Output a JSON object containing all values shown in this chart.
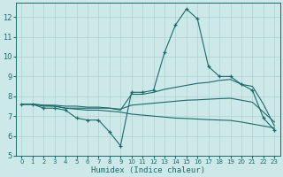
{
  "xlabel": "Humidex (Indice chaleur)",
  "xlim": [
    -0.5,
    23.5
  ],
  "ylim": [
    5,
    12.7
  ],
  "yticks": [
    5,
    6,
    7,
    8,
    9,
    10,
    11,
    12
  ],
  "xticks": [
    0,
    1,
    2,
    3,
    4,
    5,
    6,
    7,
    8,
    9,
    10,
    11,
    12,
    13,
    14,
    15,
    16,
    17,
    18,
    19,
    20,
    21,
    22,
    23
  ],
  "bg_color": "#cde8e8",
  "grid_color": "#b0d0d0",
  "line_color": "#1a6b6b",
  "lines": [
    {
      "x": [
        0,
        1,
        2,
        3,
        4,
        5,
        6,
        7,
        8,
        9,
        10,
        11,
        12,
        13,
        14,
        15,
        16,
        17,
        18,
        19,
        20,
        21,
        22,
        23
      ],
      "y": [
        7.6,
        7.6,
        7.4,
        7.4,
        7.3,
        6.9,
        6.8,
        6.8,
        6.2,
        5.5,
        8.2,
        8.2,
        8.3,
        10.2,
        11.6,
        12.4,
        11.9,
        9.5,
        9.0,
        9.0,
        8.6,
        8.3,
        6.9,
        6.3
      ],
      "marker": "+"
    },
    {
      "x": [
        0,
        1,
        2,
        3,
        4,
        5,
        6,
        7,
        8,
        9,
        10,
        11,
        12,
        13,
        14,
        15,
        16,
        17,
        18,
        19,
        20,
        21,
        22,
        23
      ],
      "y": [
        7.6,
        7.6,
        7.5,
        7.5,
        7.4,
        7.4,
        7.4,
        7.4,
        7.4,
        7.3,
        8.1,
        8.1,
        8.2,
        8.35,
        8.45,
        8.55,
        8.65,
        8.7,
        8.8,
        8.85,
        8.6,
        8.5,
        7.6,
        6.5
      ],
      "marker": null
    },
    {
      "x": [
        0,
        1,
        2,
        3,
        4,
        5,
        6,
        7,
        8,
        9,
        10,
        11,
        12,
        13,
        14,
        15,
        16,
        17,
        18,
        19,
        20,
        21,
        22,
        23
      ],
      "y": [
        7.6,
        7.6,
        7.55,
        7.55,
        7.5,
        7.5,
        7.45,
        7.45,
        7.4,
        7.35,
        7.55,
        7.6,
        7.65,
        7.7,
        7.75,
        7.8,
        7.82,
        7.85,
        7.88,
        7.9,
        7.8,
        7.7,
        7.2,
        6.7
      ],
      "marker": null
    },
    {
      "x": [
        0,
        1,
        2,
        3,
        4,
        5,
        6,
        7,
        8,
        9,
        10,
        11,
        12,
        13,
        14,
        15,
        16,
        17,
        18,
        19,
        20,
        21,
        22,
        23
      ],
      "y": [
        7.6,
        7.6,
        7.55,
        7.5,
        7.4,
        7.35,
        7.3,
        7.3,
        7.25,
        7.2,
        7.1,
        7.05,
        7.0,
        6.95,
        6.9,
        6.88,
        6.85,
        6.82,
        6.8,
        6.78,
        6.7,
        6.6,
        6.5,
        6.4
      ],
      "marker": null
    }
  ]
}
